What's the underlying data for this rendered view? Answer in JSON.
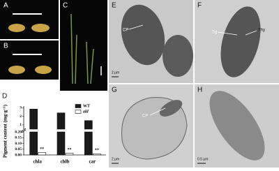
{
  "panel_labels": {
    "a": "A",
    "b": "B",
    "c": "C",
    "d": "D",
    "e": "E",
    "f": "F",
    "g": "G",
    "h": "H"
  },
  "micrograph_annotations": {
    "e_arrow": "CP",
    "e_scale": "2 μm",
    "f_arrow_1": "Sg",
    "f_arrow_2": "Thy",
    "g_arrow": "CP",
    "g_scale": "2 μm",
    "h_scale": "0.5 μm"
  },
  "chart_data": {
    "type": "bar",
    "y_label": "Pigment content (mg·g⁻¹)",
    "categories": [
      "chla",
      "chlb",
      "car"
    ],
    "series": [
      {
        "name": "WT",
        "color": "#1a1a1a",
        "values": [
          2.85,
          2.4,
          1.5
        ]
      },
      {
        "name": "ald",
        "color": "#ffffff",
        "values": [
          0.02,
          0.015,
          0.01
        ]
      }
    ],
    "annotations": [
      "**",
      "**",
      "**"
    ],
    "ylim": [
      0,
      0.2
    ],
    "yticks": [
      {
        "value": 0,
        "label": "0.00"
      },
      0.05,
      {
        "value": 0.1,
        "label": "0.10"
      },
      0.15,
      {
        "value": 0.2,
        "label": "0.20"
      }
    ],
    "upper_ylim": [
      0.5,
      3.2
    ],
    "upper_yticks": [
      1,
      2,
      3
    ],
    "axis_break": true
  }
}
